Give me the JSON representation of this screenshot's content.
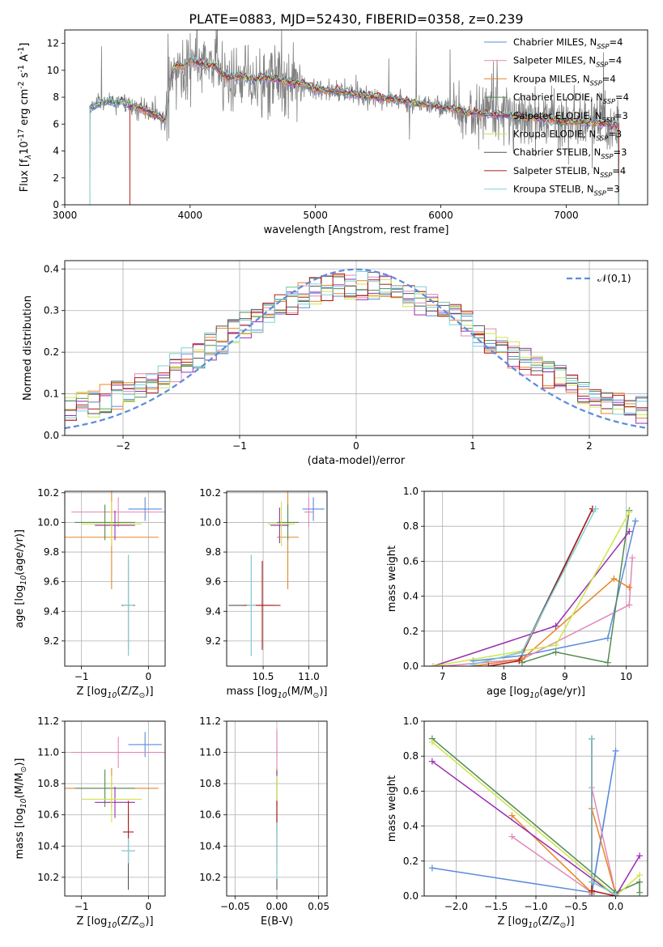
{
  "figure": {
    "title": "PLATE=0883, MJD=52430, FIBERID=0358, z=0.239"
  },
  "model_names": [
    "Chabrier MILES, N$_{SSP}$=4",
    "Salpeter MILES, N$_{SSP}$=4",
    "Kroupa MILES, N$_{SSP}$=4",
    "Chabrier ELODIE, N$_{SSP}$=4",
    "Salpeter ELODIE, N$_{SSP}$=3",
    "Kroupa ELODIE, N$_{SSP}$=3",
    "Chabrier STELIB, N$_{SSP}$=3",
    "Salpeter STELIB, N$_{SSP}$=4",
    "Kroupa STELIB, N$_{SSP}$=3"
  ],
  "colors": {
    "chabrier_miles": "#5b8bdc",
    "salpeter_miles": "#e387b8",
    "kroupa_miles": "#e8862a",
    "chabrier_elodie": "#548b54",
    "salpeter_elodie": "#9a2db0",
    "kroupa_elodie": "#cde64a",
    "chabrier_stelib": "#555555",
    "salpeter_stelib": "#b01c1c",
    "kroupa_stelib": "#7fd0d6",
    "data": "#808080",
    "normal_curve": "#5b8bdc",
    "grid": "#b0b0b0"
  },
  "chart_data": [
    {
      "id": "spectrum",
      "type": "line",
      "title": "PLATE=0883, MJD=52430, FIBERID=0358, z=0.239",
      "xlabel": "wavelength [Angstrom, rest frame]",
      "ylabel": "Flux [f$_\\lambda$10$^{-17}$ erg cm$^{-2}$ s$^{-1}$ A$^{-1}$]",
      "xlim": [
        3000,
        7650
      ],
      "ylim": [
        0,
        13
      ],
      "xticks": [
        3000,
        4000,
        5000,
        6000,
        7000
      ],
      "yticks": [
        0,
        2,
        4,
        6,
        8,
        10,
        12
      ],
      "grid": false,
      "legend": {
        "location": "upper right",
        "entries": [
          "Chabrier MILES, N$_{SSP}$=4",
          "Salpeter MILES, N$_{SSP}$=4",
          "Kroupa MILES, N$_{SSP}$=4",
          "Chabrier ELODIE, N$_{SSP}$=4",
          "Salpeter ELODIE, N$_{SSP}$=3",
          "Kroupa ELODIE, N$_{SSP}$=3",
          "Chabrier STELIB, N$_{SSP}$=3",
          "Salpeter STELIB, N$_{SSP}$=4",
          "Kroupa STELIB, N$_{SSP}$=3"
        ]
      },
      "data_range": [
        3200,
        7420
      ],
      "model_anchors": {
        "x": [
          3200,
          3300,
          3400,
          3500,
          3600,
          3700,
          3800,
          3850,
          3900,
          3950,
          4000,
          4100,
          4200,
          4300,
          4400,
          4500,
          4600,
          4700,
          4800,
          4900,
          5000,
          5200,
          5400,
          5600,
          5800,
          6000,
          6200,
          6400,
          6600,
          6800,
          7000,
          7200,
          7420
        ],
        "y": [
          7.2,
          7.6,
          7.7,
          7.5,
          7.2,
          6.8,
          6.3,
          9.8,
          10.5,
          10.2,
          10.8,
          10.4,
          10.3,
          9.4,
          9.6,
          9.3,
          9.5,
          9.3,
          9.1,
          9.0,
          8.6,
          8.4,
          8.1,
          7.9,
          7.6,
          7.3,
          6.9,
          6.7,
          6.6,
          6.4,
          6.2,
          6.1,
          5.9
        ]
      },
      "model_start": [
        3200,
        3520,
        3520,
        3200,
        3200,
        3200,
        3200,
        3520,
        3200
      ]
    },
    {
      "id": "residuals",
      "type": "histogram",
      "xlabel": "(data-model)/error",
      "ylabel": "Normed distribution",
      "xlim": [
        -2.5,
        2.5
      ],
      "ylim": [
        0,
        0.42
      ],
      "xticks": [
        -2,
        -1,
        0,
        1,
        2
      ],
      "yticks": [
        0.0,
        0.1,
        0.2,
        0.3,
        0.4
      ],
      "grid": true,
      "bin_width": 0.1,
      "legend": {
        "location": "upper right",
        "entries": [
          "$\\mathcal{N}(0,1)$"
        ]
      }
    },
    {
      "id": "age_vs_Z",
      "type": "scatter",
      "xlabel": "Z [log$_{10}$(Z/Z$_\\odot$)]",
      "ylabel": "age  [log$_{10}$(age/yr)]",
      "xlim": [
        -1.25,
        0.25
      ],
      "ylim": [
        9.03,
        10.21
      ],
      "xticks": [
        -1,
        0
      ],
      "yticks": [
        9.2,
        9.4,
        9.6,
        9.8,
        10.0,
        10.2
      ],
      "grid": true,
      "points": [
        {
          "model": "Chabrier MILES",
          "x": -0.05,
          "y": 10.09,
          "xerr": 0.25,
          "yerr": 0.08
        },
        {
          "model": "Salpeter MILES",
          "x": -0.45,
          "y": 10.07,
          "xerr": 0.7,
          "yerr": 0.1
        },
        {
          "model": "Kroupa MILES",
          "x": -0.55,
          "y": 9.9,
          "xerr": 0.7,
          "yerr": 0.35
        },
        {
          "model": "Chabrier ELODIE",
          "x": -0.65,
          "y": 10.0,
          "xerr": 0.45,
          "yerr": 0.12
        },
        {
          "model": "Salpeter ELODIE",
          "x": -0.5,
          "y": 9.98,
          "xerr": 0.3,
          "yerr": 0.1
        },
        {
          "model": "Kroupa ELODIE",
          "x": -0.55,
          "y": 9.99,
          "xerr": 0.45,
          "yerr": 0.15
        },
        {
          "model": "Chabrier STELIB",
          "x": -0.3,
          "y": 9.44,
          "xerr": 0.1,
          "yerr": 0.34
        },
        {
          "model": "Salpeter STELIB",
          "x": -0.3,
          "y": 9.44,
          "xerr": 0.08,
          "yerr": 0.3
        },
        {
          "model": "Kroupa STELIB",
          "x": -0.3,
          "y": 9.44,
          "xerr": 0.08,
          "yerr": 0.34
        }
      ]
    },
    {
      "id": "age_vs_mass",
      "type": "scatter",
      "xlabel": "mass [log$_{10}$(M/M$_\\odot$)]",
      "ylabel": "",
      "xlim": [
        10.1,
        11.2
      ],
      "ylim": [
        9.03,
        10.21
      ],
      "xticks": [
        10.5,
        11.0
      ],
      "yticks": [
        9.2,
        9.4,
        9.6,
        9.8,
        10.0,
        10.2
      ],
      "grid": true,
      "points": [
        {
          "model": "Chabrier MILES",
          "x": 11.05,
          "y": 10.09,
          "xerr": 0.12,
          "yerr": 0.08
        },
        {
          "model": "Salpeter MILES",
          "x": 11.0,
          "y": 10.07,
          "xerr": 0.05,
          "yerr": 0.1
        },
        {
          "model": "Kroupa MILES",
          "x": 10.77,
          "y": 9.9,
          "xerr": 0.12,
          "yerr": 0.35
        },
        {
          "model": "Chabrier ELODIE",
          "x": 10.77,
          "y": 10.0,
          "xerr": 0.12,
          "yerr": 0.12
        },
        {
          "model": "Salpeter ELODIE",
          "x": 10.68,
          "y": 9.98,
          "xerr": 0.1,
          "yerr": 0.12
        },
        {
          "model": "Kroupa ELODIE",
          "x": 10.7,
          "y": 9.99,
          "xerr": 0.15,
          "yerr": 0.15
        },
        {
          "model": "Chabrier STELIB",
          "x": 10.37,
          "y": 9.44,
          "xerr": 0.25,
          "yerr": 0.34
        },
        {
          "model": "Salpeter STELIB",
          "x": 10.49,
          "y": 9.44,
          "xerr": 0.2,
          "yerr": 0.3
        },
        {
          "model": "Kroupa STELIB",
          "x": 10.37,
          "y": 9.44,
          "xerr": 0.05,
          "yerr": 0.34
        }
      ]
    },
    {
      "id": "massweight_vs_age",
      "type": "line",
      "xlabel": "age  [log$_{10}$(age/yr)]",
      "ylabel": "mass weight",
      "xlim": [
        6.7,
        10.35
      ],
      "ylim": [
        0,
        1
      ],
      "xticks": [
        7,
        8,
        9,
        10
      ],
      "yticks": [
        0.0,
        0.2,
        0.4,
        0.6,
        0.8,
        1.0
      ],
      "grid": true,
      "series": [
        {
          "model": "Chabrier MILES",
          "x": [
            7.5,
            8.3,
            9.7,
            10.15
          ],
          "y": [
            0.03,
            0.06,
            0.16,
            0.83
          ]
        },
        {
          "model": "Salpeter MILES",
          "x": [
            7.0,
            8.3,
            10.05,
            10.1
          ],
          "y": [
            0.0,
            0.04,
            0.35,
            0.62
          ]
        },
        {
          "model": "Kroupa MILES",
          "x": [
            7.5,
            8.3,
            9.8,
            10.05
          ],
          "y": [
            0.0,
            0.04,
            0.5,
            0.45
          ]
        },
        {
          "model": "Chabrier ELODIE",
          "x": [
            8.3,
            8.85,
            9.7,
            10.05
          ],
          "y": [
            0.02,
            0.08,
            0.02,
            0.89
          ]
        },
        {
          "model": "Salpeter ELODIE",
          "x": [
            6.85,
            8.85,
            10.05
          ],
          "y": [
            0.0,
            0.23,
            0.77
          ]
        },
        {
          "model": "Kroupa ELODIE",
          "x": [
            6.85,
            8.85,
            10.05
          ],
          "y": [
            0.0,
            0.12,
            0.88
          ]
        },
        {
          "model": "Chabrier STELIB",
          "x": [
            7.5,
            8.3,
            9.45
          ],
          "y": [
            0.01,
            0.08,
            0.9
          ]
        },
        {
          "model": "Salpeter STELIB",
          "x": [
            7.75,
            8.25,
            9.45
          ],
          "y": [
            0.0,
            0.03,
            0.9
          ]
        },
        {
          "model": "Kroupa STELIB",
          "x": [
            7.5,
            8.3,
            9.5
          ],
          "y": [
            0.01,
            0.08,
            0.9
          ]
        }
      ]
    },
    {
      "id": "mass_vs_Z",
      "type": "scatter",
      "xlabel": "Z [log$_{10}$(Z/Z$_\\odot$)]",
      "ylabel": "mass [log$_{10}$(M/M$_\\odot$)]",
      "xlim": [
        -1.25,
        0.25
      ],
      "ylim": [
        10.08,
        11.2
      ],
      "xticks": [
        -1,
        0
      ],
      "yticks": [
        10.2,
        10.4,
        10.6,
        10.8,
        11.0,
        11.2
      ],
      "grid": true,
      "points": [
        {
          "model": "Chabrier MILES",
          "x": -0.05,
          "y": 11.05,
          "xerr": 0.25,
          "yerr": 0.08
        },
        {
          "model": "Salpeter MILES",
          "x": -0.45,
          "y": 11.0,
          "xerr": 0.7,
          "yerr": 0.1
        },
        {
          "model": "Kroupa MILES",
          "x": -0.55,
          "y": 10.77,
          "xerr": 0.7,
          "yerr": 0.13
        },
        {
          "model": "Chabrier ELODIE",
          "x": -0.65,
          "y": 10.77,
          "xerr": 0.45,
          "yerr": 0.12
        },
        {
          "model": "Salpeter ELODIE",
          "x": -0.5,
          "y": 10.68,
          "xerr": 0.3,
          "yerr": 0.1
        },
        {
          "model": "Kroupa ELODIE",
          "x": -0.55,
          "y": 10.7,
          "xerr": 0.45,
          "yerr": 0.15
        },
        {
          "model": "Chabrier STELIB",
          "x": -0.3,
          "y": 10.37,
          "xerr": 0.1,
          "yerr": 0.25
        },
        {
          "model": "Salpeter STELIB",
          "x": -0.3,
          "y": 10.49,
          "xerr": 0.08,
          "yerr": 0.2
        },
        {
          "model": "Kroupa STELIB",
          "x": -0.3,
          "y": 10.37,
          "xerr": 0.1,
          "yerr": 0.08
        }
      ]
    },
    {
      "id": "mass_vs_ebv",
      "type": "scatter",
      "xlabel": "E(B-V)",
      "ylabel": "",
      "xlim": [
        -0.06,
        0.06
      ],
      "ylim": [
        10.08,
        11.2
      ],
      "xticks": [
        -0.05,
        0.0,
        0.05
      ],
      "yticks": [
        10.2,
        10.4,
        10.6,
        10.8,
        11.0,
        11.2
      ],
      "grid": true,
      "points": [
        {
          "model": "Chabrier MILES",
          "x": 0.0,
          "y": 11.05,
          "xerr": 0,
          "yerr": 0.08
        },
        {
          "model": "Salpeter MILES",
          "x": 0.0,
          "y": 11.0,
          "xerr": 0,
          "yerr": 0.15
        },
        {
          "model": "Kroupa MILES",
          "x": 0.0,
          "y": 10.77,
          "xerr": 0,
          "yerr": 0.13
        },
        {
          "model": "Chabrier ELODIE",
          "x": 0.0,
          "y": 10.77,
          "xerr": 0,
          "yerr": 0.12
        },
        {
          "model": "Salpeter ELODIE",
          "x": 0.0,
          "y": 10.68,
          "xerr": 0,
          "yerr": 0.2
        },
        {
          "model": "Kroupa ELODIE",
          "x": 0.0,
          "y": 10.7,
          "xerr": 0,
          "yerr": 0.15
        },
        {
          "model": "Chabrier STELIB",
          "x": 0.0,
          "y": 10.37,
          "xerr": 0,
          "yerr": 0.25
        },
        {
          "model": "Salpeter STELIB",
          "x": 0.0,
          "y": 10.49,
          "xerr": 0,
          "yerr": 0.2
        },
        {
          "model": "Kroupa STELIB",
          "x": 0.0,
          "y": 10.37,
          "xerr": 0,
          "yerr": 0.18
        }
      ]
    },
    {
      "id": "massweight_vs_Z",
      "type": "line",
      "xlabel": "Z [log$_{10}$(Z/Z$_\\odot$)]",
      "ylabel": "mass weight",
      "xlim": [
        -2.4,
        0.4
      ],
      "ylim": [
        0,
        1
      ],
      "xticks": [
        -2.0,
        -1.5,
        -1.0,
        -0.5,
        0.0
      ],
      "yticks": [
        0.0,
        0.2,
        0.4,
        0.6,
        0.8,
        1.0
      ],
      "grid": true,
      "series": [
        {
          "model": "Chabrier MILES",
          "x": [
            -2.3,
            -0.3,
            0.0,
            -0.3
          ],
          "y": [
            0.16,
            0.02,
            0.83,
            0.01
          ]
        },
        {
          "model": "Salpeter MILES",
          "x": [
            -1.3,
            -0.3,
            -0.3,
            0.0
          ],
          "y": [
            0.34,
            0.02,
            0.62,
            0.01
          ]
        },
        {
          "model": "Kroupa MILES",
          "x": [
            -1.3,
            -0.3,
            -0.3,
            0.0
          ],
          "y": [
            0.46,
            0.02,
            0.5,
            0.01
          ]
        },
        {
          "model": "Chabrier ELODIE",
          "x": [
            -2.3,
            0.0,
            0.3,
            0.3
          ],
          "y": [
            0.9,
            0.02,
            0.08,
            0.02
          ]
        },
        {
          "model": "Salpeter ELODIE",
          "x": [
            -2.3,
            0.0,
            0.3
          ],
          "y": [
            0.77,
            0.0,
            0.23
          ]
        },
        {
          "model": "Kroupa ELODIE",
          "x": [
            -2.3,
            0.0,
            0.3
          ],
          "y": [
            0.88,
            0.0,
            0.12
          ]
        },
        {
          "model": "Chabrier STELIB",
          "x": [
            -0.3,
            -0.3,
            0.0
          ],
          "y": [
            0.9,
            0.08,
            0.01
          ]
        },
        {
          "model": "Salpeter STELIB",
          "x": [
            -0.3,
            -0.3,
            0.0
          ],
          "y": [
            0.9,
            0.03,
            0.0
          ]
        },
        {
          "model": "Kroupa STELIB",
          "x": [
            -0.3,
            -0.3,
            0.0
          ],
          "y": [
            0.9,
            0.08,
            0.01
          ]
        }
      ]
    }
  ]
}
